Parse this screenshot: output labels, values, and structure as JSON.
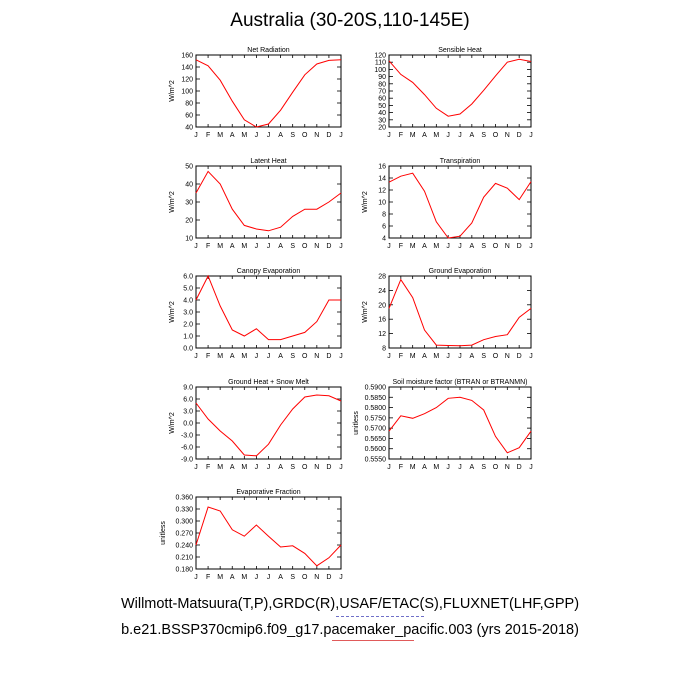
{
  "title": "Australia (30-20S,110-145E)",
  "footer": {
    "line1": "Willmott-Matsuura(T,P),GRDC(R),USAF/ETAC(S),FLUXNET(LHF,GPP)",
    "line2": "b.e21.BSSP370cmip6.f09_g17.pacemaker_pacific.003 (yrs 2015-2018)"
  },
  "colors": {
    "line": "#ff0000",
    "axis": "#000000"
  },
  "months": [
    "J",
    "F",
    "M",
    "A",
    "M",
    "J",
    "J",
    "A",
    "S",
    "O",
    "N",
    "D",
    "J"
  ],
  "chart_data": [
    {
      "type": "line",
      "title": "Net Radiation",
      "ylabel": "W/m^2",
      "ylim": [
        40,
        160
      ],
      "yticks": [
        "40",
        "60",
        "80",
        "100",
        "120",
        "140",
        "160"
      ],
      "series": [
        {
          "values": [
            152,
            142,
            118,
            83,
            52,
            40,
            45,
            68,
            98,
            127,
            145,
            151,
            152
          ]
        }
      ]
    },
    {
      "type": "line",
      "title": "Sensible Heat",
      "ylabel": "",
      "ylim": [
        20,
        120
      ],
      "yticks": [
        "20",
        "30",
        "40",
        "50",
        "60",
        "70",
        "80",
        "90",
        "100",
        "110",
        "120"
      ],
      "series": [
        {
          "values": [
            112,
            93,
            82,
            65,
            46,
            35,
            38,
            52,
            71,
            91,
            110,
            114,
            111
          ]
        }
      ]
    },
    {
      "type": "line",
      "title": "Latent Heat",
      "ylabel": "W/m^2",
      "ylim": [
        10,
        50
      ],
      "yticks": [
        "10",
        "20",
        "30",
        "40",
        "50"
      ],
      "series": [
        {
          "values": [
            35,
            47,
            40,
            26,
            17,
            15,
            14,
            16,
            22,
            26,
            26,
            30,
            35
          ]
        }
      ]
    },
    {
      "type": "line",
      "title": "Transpiration",
      "ylabel": "W/m^2",
      "ylim": [
        4,
        16
      ],
      "yticks": [
        "4",
        "6",
        "8",
        "10",
        "12",
        "14",
        "16"
      ],
      "series": [
        {
          "values": [
            13.3,
            14.3,
            14.8,
            11.8,
            6.7,
            4.0,
            4.3,
            6.5,
            10.8,
            13.1,
            12.3,
            10.4,
            13.4
          ]
        }
      ]
    },
    {
      "type": "line",
      "title": "Canopy Evaporation",
      "ylabel": "W/m^2",
      "ylim": [
        0.0,
        6.0
      ],
      "yticks": [
        "0.0",
        "1.0",
        "2.0",
        "3.0",
        "4.0",
        "5.0",
        "6.0"
      ],
      "series": [
        {
          "values": [
            4.0,
            6.0,
            3.5,
            1.5,
            1.0,
            1.6,
            0.7,
            0.7,
            1.0,
            1.3,
            2.2,
            4.0,
            4.0
          ]
        }
      ]
    },
    {
      "type": "line",
      "title": "Ground Evaporation",
      "ylabel": "W/m^2",
      "ylim": [
        8,
        28
      ],
      "yticks": [
        "8",
        "12",
        "16",
        "20",
        "24",
        "28"
      ],
      "series": [
        {
          "values": [
            19,
            27,
            22,
            13,
            8.8,
            8.7,
            8.6,
            8.8,
            10.3,
            11.2,
            11.7,
            16.5,
            19
          ]
        }
      ]
    },
    {
      "type": "line",
      "title": "Ground Heat + Snow Melt",
      "ylabel": "W/m^2",
      "ylim": [
        -9.0,
        9.0
      ],
      "yticks": [
        "-9.0",
        "-6.0",
        "-3.0",
        "0.0",
        "3.0",
        "6.0",
        "9.0"
      ],
      "series": [
        {
          "values": [
            5.0,
            1.0,
            -2.0,
            -4.5,
            -8.0,
            -8.2,
            -5.3,
            -0.5,
            3.5,
            6.5,
            7.0,
            6.8,
            5.5
          ]
        }
      ]
    },
    {
      "type": "line",
      "title": "Soil moisture factor (BTRAN or BTRANMN)",
      "ylabel": "unitless",
      "ylim": [
        0.555,
        0.59
      ],
      "yticks": [
        "0.5550",
        "0.5600",
        "0.5650",
        "0.5700",
        "0.5750",
        "0.5800",
        "0.5850",
        "0.5900"
      ],
      "series": [
        {
          "values": [
            0.5685,
            0.576,
            0.5748,
            0.577,
            0.58,
            0.5845,
            0.585,
            0.5835,
            0.5788,
            0.566,
            0.558,
            0.5605,
            0.5685
          ]
        }
      ]
    },
    {
      "type": "line",
      "title": "Evaporative Fraction",
      "ylabel": "unitless",
      "ylim": [
        0.18,
        0.36
      ],
      "yticks": [
        "0.180",
        "0.210",
        "0.240",
        "0.270",
        "0.300",
        "0.330",
        "0.360"
      ],
      "series": [
        {
          "values": [
            0.24,
            0.335,
            0.325,
            0.278,
            0.262,
            0.29,
            0.262,
            0.235,
            0.238,
            0.219,
            0.188,
            0.208,
            0.24
          ]
        }
      ]
    }
  ]
}
